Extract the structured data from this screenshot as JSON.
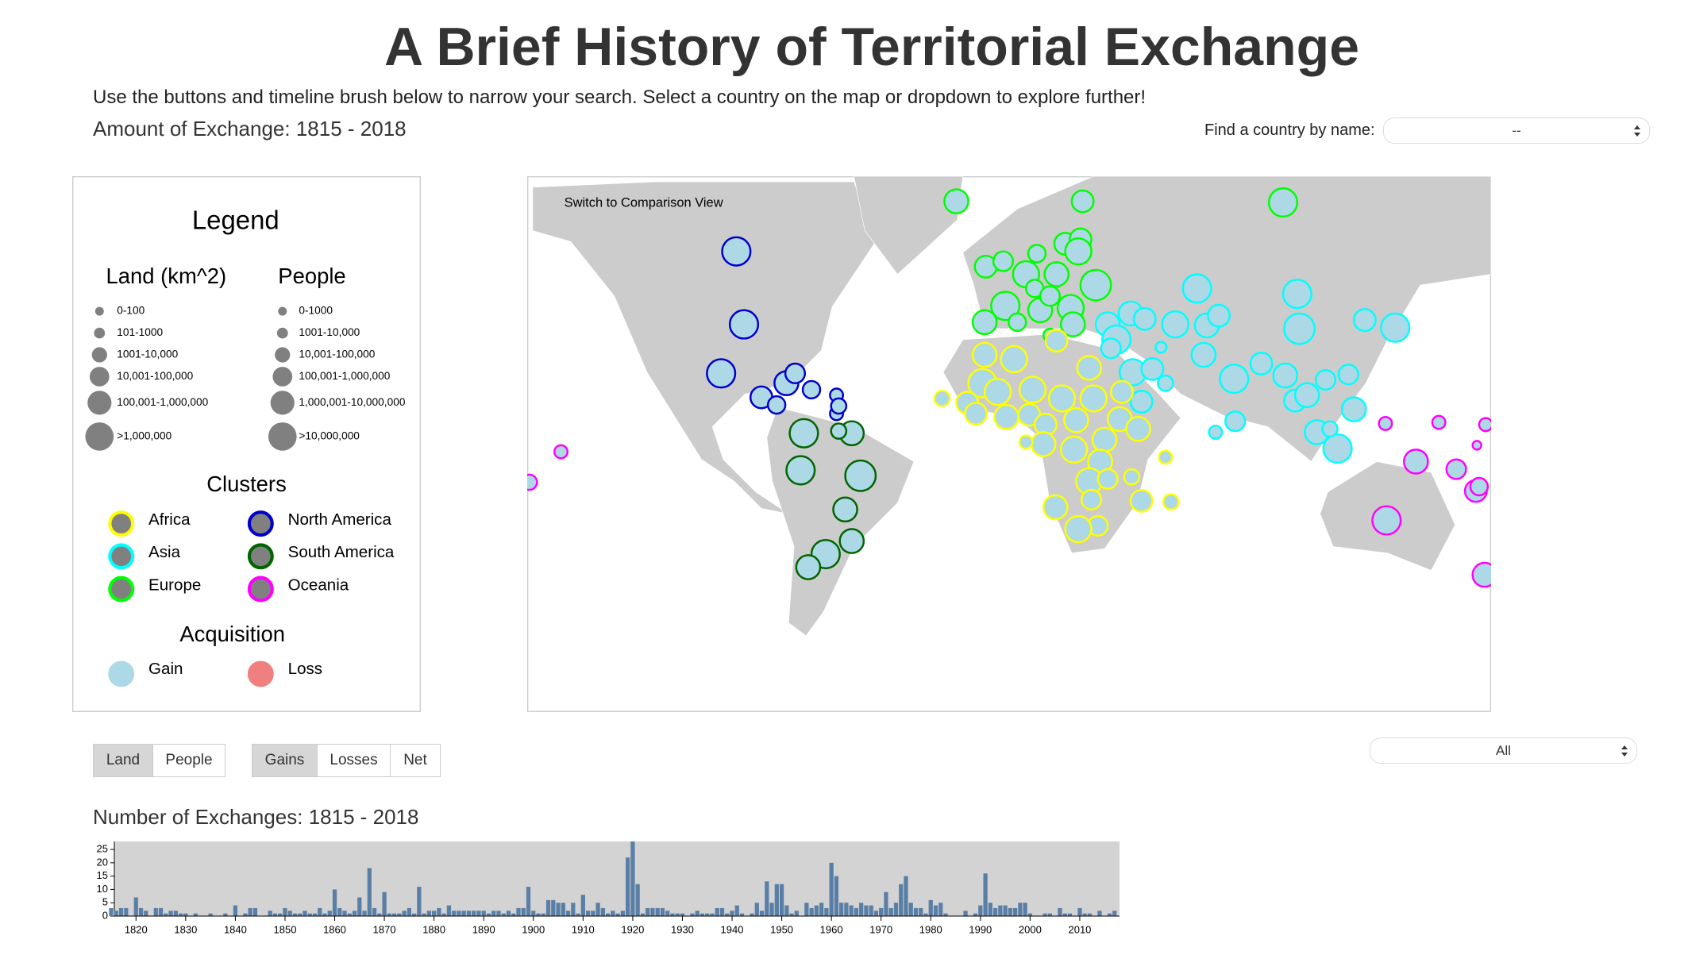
{
  "header": {
    "title": "A Brief History of Territorial Exchange",
    "instructions": "Use the buttons and timeline brush below to narrow your search. Select a country on the map or dropdown to explore further!",
    "amount_label": "Amount of Exchange: 1815 - 2018",
    "find_label": "Find a country by name:",
    "find_value": "--"
  },
  "legend": {
    "title": "Legend",
    "land": {
      "title": "Land (km^2)",
      "bins": [
        "0-100",
        "101-1000",
        "1001-10,000",
        "10,001-100,000",
        "100,001-1,000,000",
        ">1,000,000"
      ]
    },
    "people": {
      "title": "People",
      "bins": [
        "0-1000",
        "1001-10,000",
        "10,001-100,000",
        "100,001-1,000,000",
        "1,000,001-10,000,000",
        ">10,000,000"
      ]
    },
    "clusters": {
      "title": "Clusters",
      "items": [
        {
          "name": "Africa",
          "color": "#ffff00"
        },
        {
          "name": "Asia",
          "color": "#00ffff"
        },
        {
          "name": "Europe",
          "color": "#00ff00"
        },
        {
          "name": "North America",
          "color": "#0000cd"
        },
        {
          "name": "South America",
          "color": "#006400"
        },
        {
          "name": "Oceania",
          "color": "#ff00ff"
        }
      ]
    },
    "acquisition": {
      "title": "Acquisition",
      "items": [
        {
          "name": "Gain",
          "color": "#add8e6"
        },
        {
          "name": "Loss",
          "color": "#f08080"
        }
      ]
    }
  },
  "map": {
    "toggle": "Switch to Comparison View"
  },
  "controls": {
    "measure": [
      "Land",
      "People"
    ],
    "direction": [
      "Gains",
      "Losses",
      "Net"
    ],
    "region_select": "All"
  },
  "chart_data": {
    "type": "bar",
    "title": "Number of Exchanges: 1815 - 2018",
    "color": "#5a7fa6",
    "background": "#d3d3d3",
    "x": [
      1815,
      1816,
      1817,
      1818,
      1819,
      1820,
      1821,
      1822,
      1823,
      1824,
      1825,
      1826,
      1827,
      1828,
      1829,
      1830,
      1831,
      1832,
      1833,
      1834,
      1835,
      1836,
      1837,
      1838,
      1839,
      1840,
      1841,
      1842,
      1843,
      1844,
      1845,
      1846,
      1847,
      1848,
      1849,
      1850,
      1851,
      1852,
      1853,
      1854,
      1855,
      1856,
      1857,
      1858,
      1859,
      1860,
      1861,
      1862,
      1863,
      1864,
      1865,
      1866,
      1867,
      1868,
      1869,
      1870,
      1871,
      1872,
      1873,
      1874,
      1875,
      1876,
      1877,
      1878,
      1879,
      1880,
      1881,
      1882,
      1883,
      1884,
      1885,
      1886,
      1887,
      1888,
      1889,
      1890,
      1891,
      1892,
      1893,
      1894,
      1895,
      1896,
      1897,
      1898,
      1899,
      1900,
      1901,
      1902,
      1903,
      1904,
      1905,
      1906,
      1907,
      1908,
      1909,
      1910,
      1911,
      1912,
      1913,
      1914,
      1915,
      1916,
      1917,
      1918,
      1919,
      1920,
      1921,
      1922,
      1923,
      1924,
      1925,
      1926,
      1927,
      1928,
      1929,
      1930,
      1931,
      1932,
      1933,
      1934,
      1935,
      1936,
      1937,
      1938,
      1939,
      1940,
      1941,
      1942,
      1943,
      1944,
      1945,
      1946,
      1947,
      1948,
      1949,
      1950,
      1951,
      1952,
      1953,
      1954,
      1955,
      1956,
      1957,
      1958,
      1959,
      1960,
      1961,
      1962,
      1963,
      1964,
      1965,
      1966,
      1967,
      1968,
      1969,
      1970,
      1971,
      1972,
      1973,
      1974,
      1975,
      1976,
      1977,
      1978,
      1979,
      1980,
      1981,
      1982,
      1983,
      1984,
      1985,
      1986,
      1987,
      1988,
      1989,
      1990,
      1991,
      1992,
      1993,
      1994,
      1995,
      1996,
      1997,
      1998,
      1999,
      2000,
      2001,
      2002,
      2003,
      2004,
      2005,
      2006,
      2007,
      2008,
      2009,
      2010,
      2011,
      2012,
      2013,
      2014,
      2015,
      2016,
      2017,
      2018
    ],
    "values": [
      3,
      2,
      3,
      3,
      0,
      7,
      3,
      2,
      0,
      3,
      3,
      1,
      2,
      2,
      1,
      1,
      0,
      1,
      0,
      0,
      1,
      0,
      0,
      1,
      0,
      4,
      0,
      1,
      3,
      3,
      0,
      0,
      2,
      1,
      1,
      3,
      2,
      1,
      1,
      2,
      1,
      1,
      3,
      1,
      2,
      10,
      3,
      2,
      1,
      2,
      7,
      2,
      18,
      3,
      1,
      9,
      1,
      1,
      1,
      2,
      3,
      1,
      11,
      1,
      2,
      2,
      3,
      1,
      4,
      2,
      2,
      2,
      2,
      2,
      2,
      2,
      1,
      2,
      2,
      1,
      2,
      1,
      3,
      3,
      11,
      2,
      1,
      1,
      6,
      6,
      5,
      5,
      2,
      5,
      1,
      8,
      2,
      2,
      5,
      3,
      1,
      2,
      1,
      2,
      22,
      28,
      12,
      1,
      3,
      3,
      3,
      3,
      2,
      1,
      1,
      1,
      0,
      1,
      2,
      1,
      1,
      1,
      3,
      3,
      1,
      2,
      4,
      1,
      0,
      1,
      5,
      2,
      13,
      5,
      12,
      12,
      4,
      1,
      2,
      0,
      5,
      3,
      4,
      5,
      3,
      20,
      15,
      5,
      5,
      4,
      3,
      5,
      4,
      4,
      2,
      3,
      9,
      3,
      5,
      12,
      15,
      5,
      3,
      3,
      1,
      6,
      4,
      5,
      1,
      0,
      0,
      0,
      2,
      0,
      1,
      4,
      16,
      5,
      3,
      4,
      4,
      3,
      3,
      5,
      5,
      1,
      0,
      0,
      1,
      1,
      0,
      3,
      1,
      1,
      0,
      3,
      1,
      1,
      0,
      2,
      0,
      1,
      2,
      0
    ],
    "xlim": [
      1815,
      2018
    ],
    "xticks": [
      1820,
      1830,
      1840,
      1850,
      1860,
      1870,
      1880,
      1890,
      1900,
      1910,
      1920,
      1930,
      1940,
      1950,
      1960,
      1970,
      1980,
      1990,
      2000,
      2010
    ],
    "ylim": [
      0,
      28
    ],
    "yticks": [
      0,
      5,
      10,
      15,
      20,
      25
    ]
  }
}
